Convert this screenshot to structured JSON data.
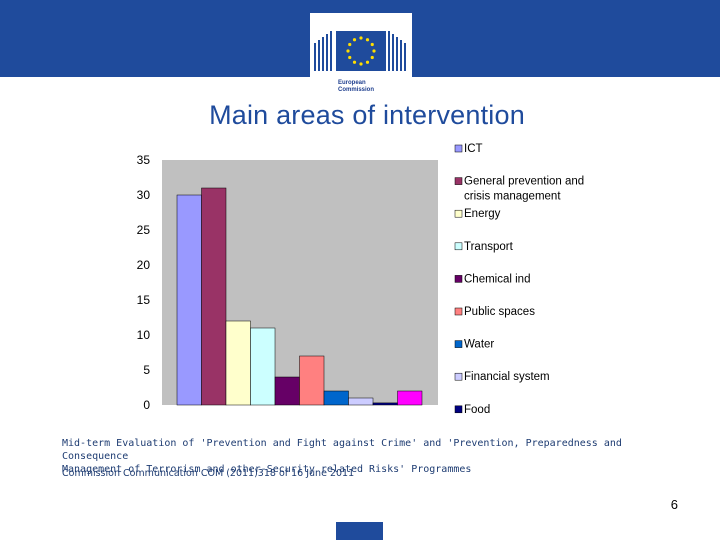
{
  "header": {
    "logo_line1": "European",
    "logo_line2": "Commission",
    "colors": {
      "band": "#1f4b9c",
      "flag": "#1f4b9c",
      "stars": "#ffdd00"
    }
  },
  "title": "Main areas of intervention",
  "chart_data": {
    "type": "bar",
    "title": "",
    "xlabel": "",
    "ylabel": "",
    "ylim": [
      0,
      35
    ],
    "yticks": [
      "0",
      "5",
      "10",
      "15",
      "20",
      "25",
      "30",
      "35"
    ],
    "grid": false,
    "plot_background": "#c0c0c0",
    "legend_position": "right",
    "series": [
      {
        "name": "ICT",
        "value": 30,
        "color": "#9999ff"
      },
      {
        "name": "General prevention and crisis management",
        "value": 31,
        "color": "#993366"
      },
      {
        "name": "Energy",
        "value": 12,
        "color": "#ffffcc"
      },
      {
        "name": "Transport",
        "value": 11,
        "color": "#ccffff"
      },
      {
        "name": "Chemical ind",
        "value": 4,
        "color": "#660066"
      },
      {
        "name": "Public spaces",
        "value": 7,
        "color": "#ff8080"
      },
      {
        "name": "Water",
        "value": 2,
        "color": "#0066cc"
      },
      {
        "name": "Financial system",
        "value": 1,
        "color": "#ccccff"
      },
      {
        "name": "Food",
        "value": 0.3,
        "color": "#000080"
      },
      {
        "name": "",
        "value": 2,
        "color": "#ff00ff"
      }
    ]
  },
  "caption": {
    "line1": "Mid-term Evaluation of 'Prevention and Fight against Crime' and 'Prevention, Preparedness and Consequence",
    "line2": "Management of Terrorism and other-Security related Risks' Programmes",
    "source": "Commission Communication COM (2011)318 of 16 June 2011"
  },
  "page_number": "6"
}
